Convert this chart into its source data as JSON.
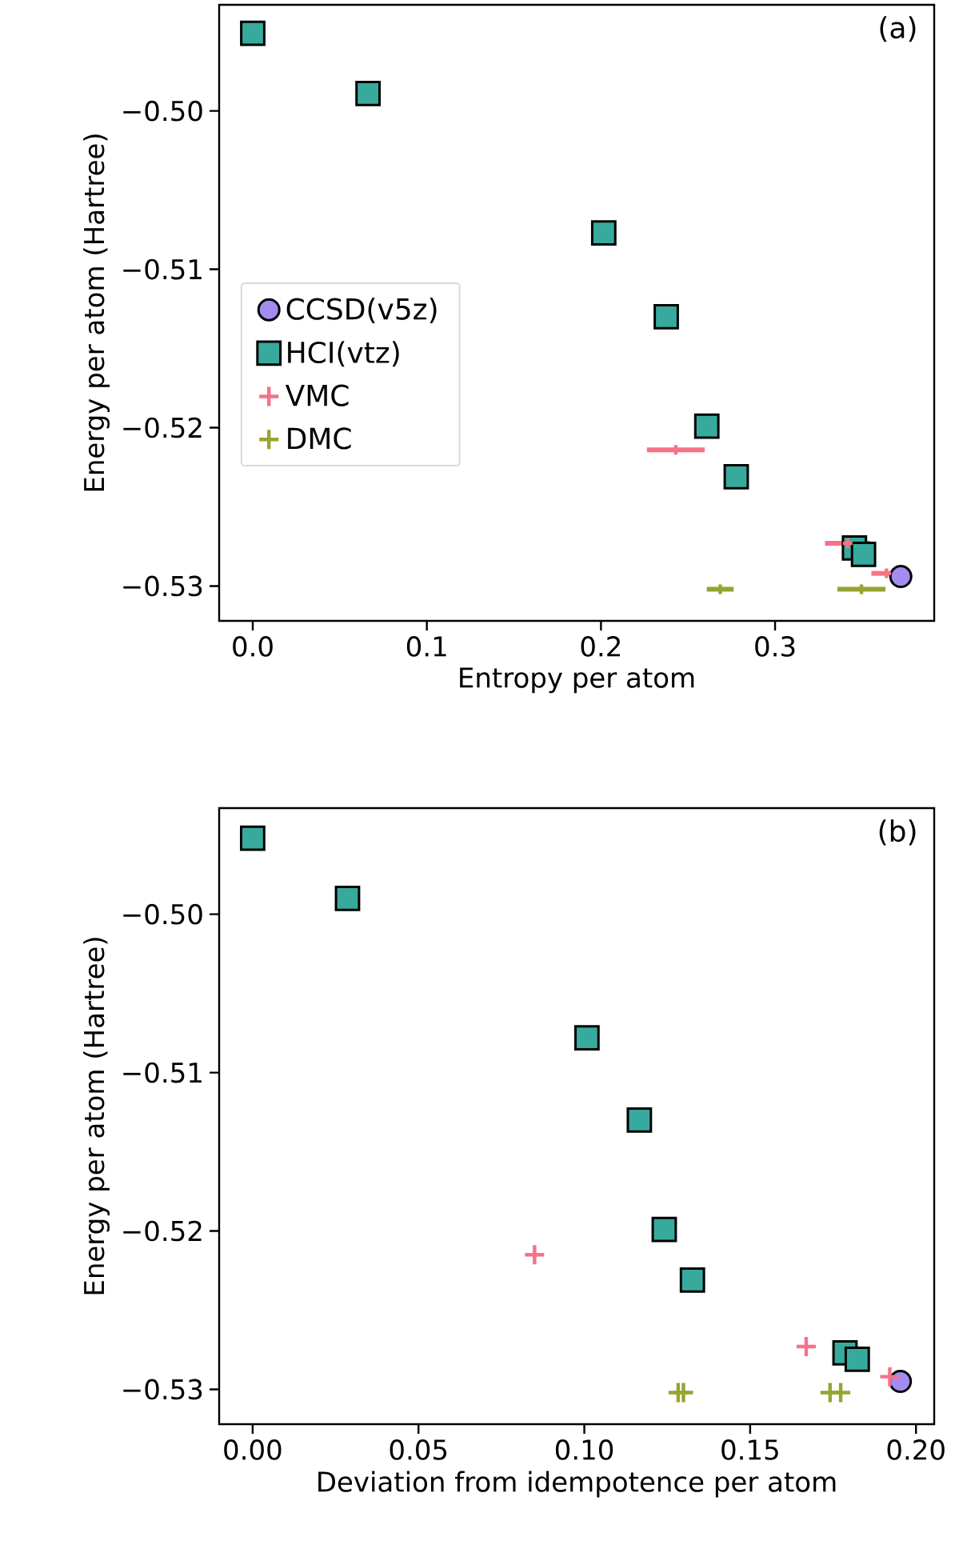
{
  "chart_data": [
    {
      "type": "scatter",
      "title": "(a)",
      "xlabel": "Entropy per atom",
      "ylabel": "Energy per atom (Hartree)",
      "xlim": [
        -0.0193,
        0.3914
      ],
      "ylim": [
        -0.5322,
        -0.4933
      ],
      "xticks": [
        {
          "value": 0,
          "label": "0.0"
        },
        {
          "value": 0.1,
          "label": "0.1"
        },
        {
          "value": 0.2,
          "label": "0.2"
        },
        {
          "value": 0.3,
          "label": "0.3"
        }
      ],
      "yticks": [
        {
          "value": -0.53,
          "label": "−0.53"
        },
        {
          "value": -0.52,
          "label": "−0.52"
        },
        {
          "value": -0.51,
          "label": "−0.51"
        },
        {
          "value": -0.5,
          "label": "−0.50"
        }
      ],
      "legend": "center left",
      "series": [
        {
          "name": "CCSD(v5z)",
          "color": "#a38cf0",
          "marker": "circle",
          "x": [
            0.3722
          ],
          "values": [
            -0.5294
          ]
        },
        {
          "name": "HCI(vtz)",
          "color": "#38aa9d",
          "marker": "square",
          "x": [
            0.0,
            0.0662,
            0.2016,
            0.2375,
            0.2608,
            0.2777,
            0.3456,
            0.3508
          ],
          "values": [
            -0.4951,
            -0.4989,
            -0.5077,
            -0.513,
            -0.5199,
            -0.5231,
            -0.5276,
            -0.528
          ]
        },
        {
          "name": "VMC",
          "color": "#f77189",
          "marker": "cross",
          "x": [
            0.243,
            0.3417,
            0.364
          ],
          "values": [
            -0.5214,
            -0.5273,
            -0.5292
          ],
          "xerrors": [
            0.0166,
            0.013,
            0.0087
          ]
        },
        {
          "name": "DMC",
          "color": "#97a431",
          "marker": "cross",
          "x": [
            0.2685,
            0.3496
          ],
          "values": [
            -0.5302,
            -0.5302
          ],
          "xerrors": [
            0.0077,
            0.0138
          ]
        }
      ]
    },
    {
      "type": "scatter",
      "title": "(b)",
      "xlabel": "Deviation from idempotence per atom",
      "ylabel": "Energy per atom (Hartree)",
      "xlim": [
        -0.0101,
        0.2055
      ],
      "ylim": [
        -0.5322,
        -0.4933
      ],
      "xticks": [
        {
          "value": 0,
          "label": "0.00"
        },
        {
          "value": 0.05,
          "label": "0.05"
        },
        {
          "value": 0.1,
          "label": "0.10"
        },
        {
          "value": 0.15,
          "label": "0.15"
        },
        {
          "value": 0.2,
          "label": "0.20"
        }
      ],
      "yticks": [
        {
          "value": -0.53,
          "label": "−0.53"
        },
        {
          "value": -0.52,
          "label": "−0.52"
        },
        {
          "value": -0.51,
          "label": "−0.51"
        },
        {
          "value": -0.5,
          "label": "−0.50"
        }
      ],
      "series": [
        {
          "color": "#a38cf0",
          "marker": "circle",
          "x": [
            0.1953
          ],
          "values": [
            -0.5295
          ]
        },
        {
          "color": "#38aa9d",
          "marker": "square",
          "x": [
            0.0,
            0.0286,
            0.1008,
            0.1166,
            0.1241,
            0.1326,
            0.1786,
            0.1823
          ],
          "values": [
            -0.4952,
            -0.499,
            -0.5078,
            -0.513,
            -0.5199,
            -0.5231,
            -0.5277,
            -0.5281
          ]
        },
        {
          "color": "#f77189",
          "marker": "cross",
          "x": [
            0.085,
            0.1669,
            0.1921
          ],
          "values": [
            -0.5215,
            -0.5273,
            -0.5292
          ]
        },
        {
          "color": "#97a431",
          "marker": "cross",
          "x": [
            0.1283,
            0.1299,
            0.1741,
            0.1773
          ],
          "values": [
            -0.5302,
            -0.5302,
            -0.5302,
            -0.5302
          ]
        }
      ]
    }
  ]
}
